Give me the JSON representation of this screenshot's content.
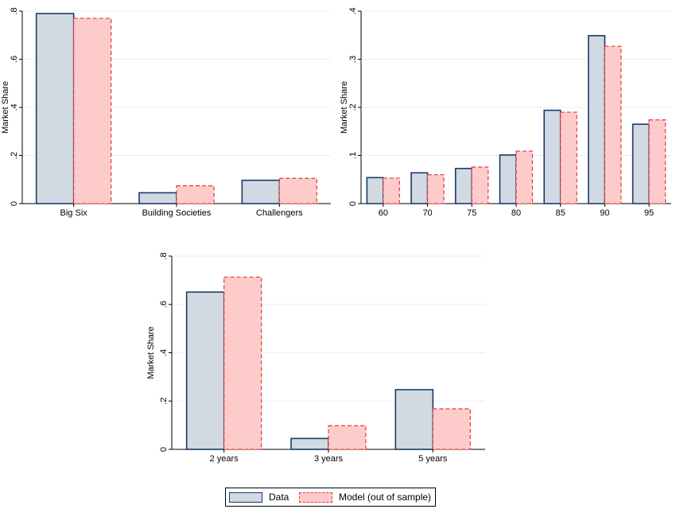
{
  "chart_data": [
    {
      "type": "bar",
      "categories": [
        "Big Six",
        "Building Societies",
        "Challengers"
      ],
      "ylabel": "Market Share",
      "ylim": [
        0,
        0.8
      ],
      "yticks": [
        0,
        0.2,
        0.4,
        0.6,
        0.8
      ],
      "ytick_labels": [
        "0",
        ".2",
        ".4",
        ".6",
        ".8"
      ],
      "grid": true,
      "series": [
        {
          "name": "Data",
          "values": [
            0.79,
            0.045,
            0.097
          ]
        },
        {
          "name": "Model (out of sample)",
          "values": [
            0.77,
            0.074,
            0.105
          ]
        }
      ]
    },
    {
      "type": "bar",
      "categories": [
        "60",
        "70",
        "75",
        "80",
        "85",
        "90",
        "95"
      ],
      "ylabel": "Market Share",
      "ylim": [
        0,
        0.4
      ],
      "yticks": [
        0,
        0.1,
        0.2,
        0.3,
        0.4
      ],
      "ytick_labels": [
        "0",
        ".1",
        ".2",
        ".3",
        ".4"
      ],
      "grid": true,
      "series": [
        {
          "name": "Data",
          "values": [
            0.054,
            0.064,
            0.073,
            0.101,
            0.194,
            0.349,
            0.165
          ]
        },
        {
          "name": "Model (out of sample)",
          "values": [
            0.053,
            0.06,
            0.076,
            0.109,
            0.19,
            0.327,
            0.174
          ]
        }
      ]
    },
    {
      "type": "bar",
      "categories": [
        "2 years",
        "3 years",
        "5 years"
      ],
      "ylabel": "Market Share",
      "ylim": [
        0,
        0.8
      ],
      "yticks": [
        0,
        0.2,
        0.4,
        0.6,
        0.8
      ],
      "ytick_labels": [
        "0",
        ".2",
        ".4",
        ".6",
        ".8"
      ],
      "grid": true,
      "series": [
        {
          "name": "Data",
          "values": [
            0.651,
            0.045,
            0.247
          ]
        },
        {
          "name": "Model (out of sample)",
          "values": [
            0.713,
            0.098,
            0.168
          ]
        }
      ]
    }
  ],
  "legend": {
    "placement": "bottom-center",
    "items": [
      {
        "label": "Data",
        "fill": "#d1d9e3",
        "stroke": "#1b3a6b",
        "style": "solid"
      },
      {
        "label": "Model (out of sample)",
        "fill": "#fecbcb",
        "stroke": "#e03a3a",
        "style": "dashed"
      }
    ]
  },
  "colors": {
    "data_fill": "#d1d9e3",
    "data_stroke": "#1b3a6b",
    "model_fill": "#fecbcb",
    "model_stroke": "#e03a3a"
  }
}
